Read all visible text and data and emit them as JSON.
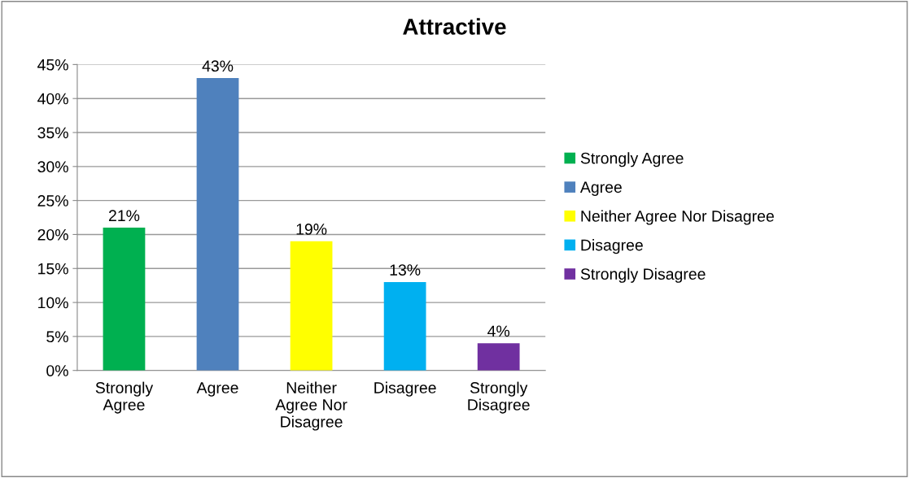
{
  "chart_data": {
    "type": "bar",
    "title": "Attractive",
    "categories": [
      "Strongly Agree",
      "Agree",
      "Neither Agree Nor Disagree",
      "Disagree",
      "Strongly Disagree"
    ],
    "series": [
      {
        "name": "Strongly Agree",
        "color": "#00b050",
        "values": [
          21,
          null,
          null,
          null,
          null
        ],
        "value_labels": [
          "21%",
          null,
          null,
          null,
          null
        ]
      },
      {
        "name": "Agree",
        "color": "#4f81bd",
        "values": [
          null,
          43,
          null,
          null,
          null
        ],
        "value_labels": [
          null,
          "43%",
          null,
          null,
          null
        ]
      },
      {
        "name": "Neither Agree Nor Disagree",
        "color": "#ffff00",
        "values": [
          null,
          null,
          19,
          null,
          null
        ],
        "value_labels": [
          null,
          null,
          "19%",
          null,
          null
        ]
      },
      {
        "name": "Disagree",
        "color": "#00b0f0",
        "values": [
          null,
          null,
          null,
          13,
          null
        ],
        "value_labels": [
          null,
          null,
          null,
          "13%",
          null
        ]
      },
      {
        "name": "Strongly Disagree",
        "color": "#7030a0",
        "values": [
          null,
          null,
          null,
          null,
          4
        ],
        "value_labels": [
          null,
          null,
          null,
          null,
          "4%"
        ]
      }
    ],
    "ylim": [
      0,
      45
    ],
    "yticks": [
      {
        "value": 0,
        "label": "0%"
      },
      {
        "value": 5,
        "label": "5%"
      },
      {
        "value": 10,
        "label": "10%"
      },
      {
        "value": 15,
        "label": "15%"
      },
      {
        "value": 20,
        "label": "20%"
      },
      {
        "value": 25,
        "label": "25%"
      },
      {
        "value": 30,
        "label": "30%"
      },
      {
        "value": 35,
        "label": "35%"
      },
      {
        "value": 40,
        "label": "40%"
      },
      {
        "value": 45,
        "label": "45%"
      }
    ],
    "grid": "y",
    "legend": "right"
  }
}
